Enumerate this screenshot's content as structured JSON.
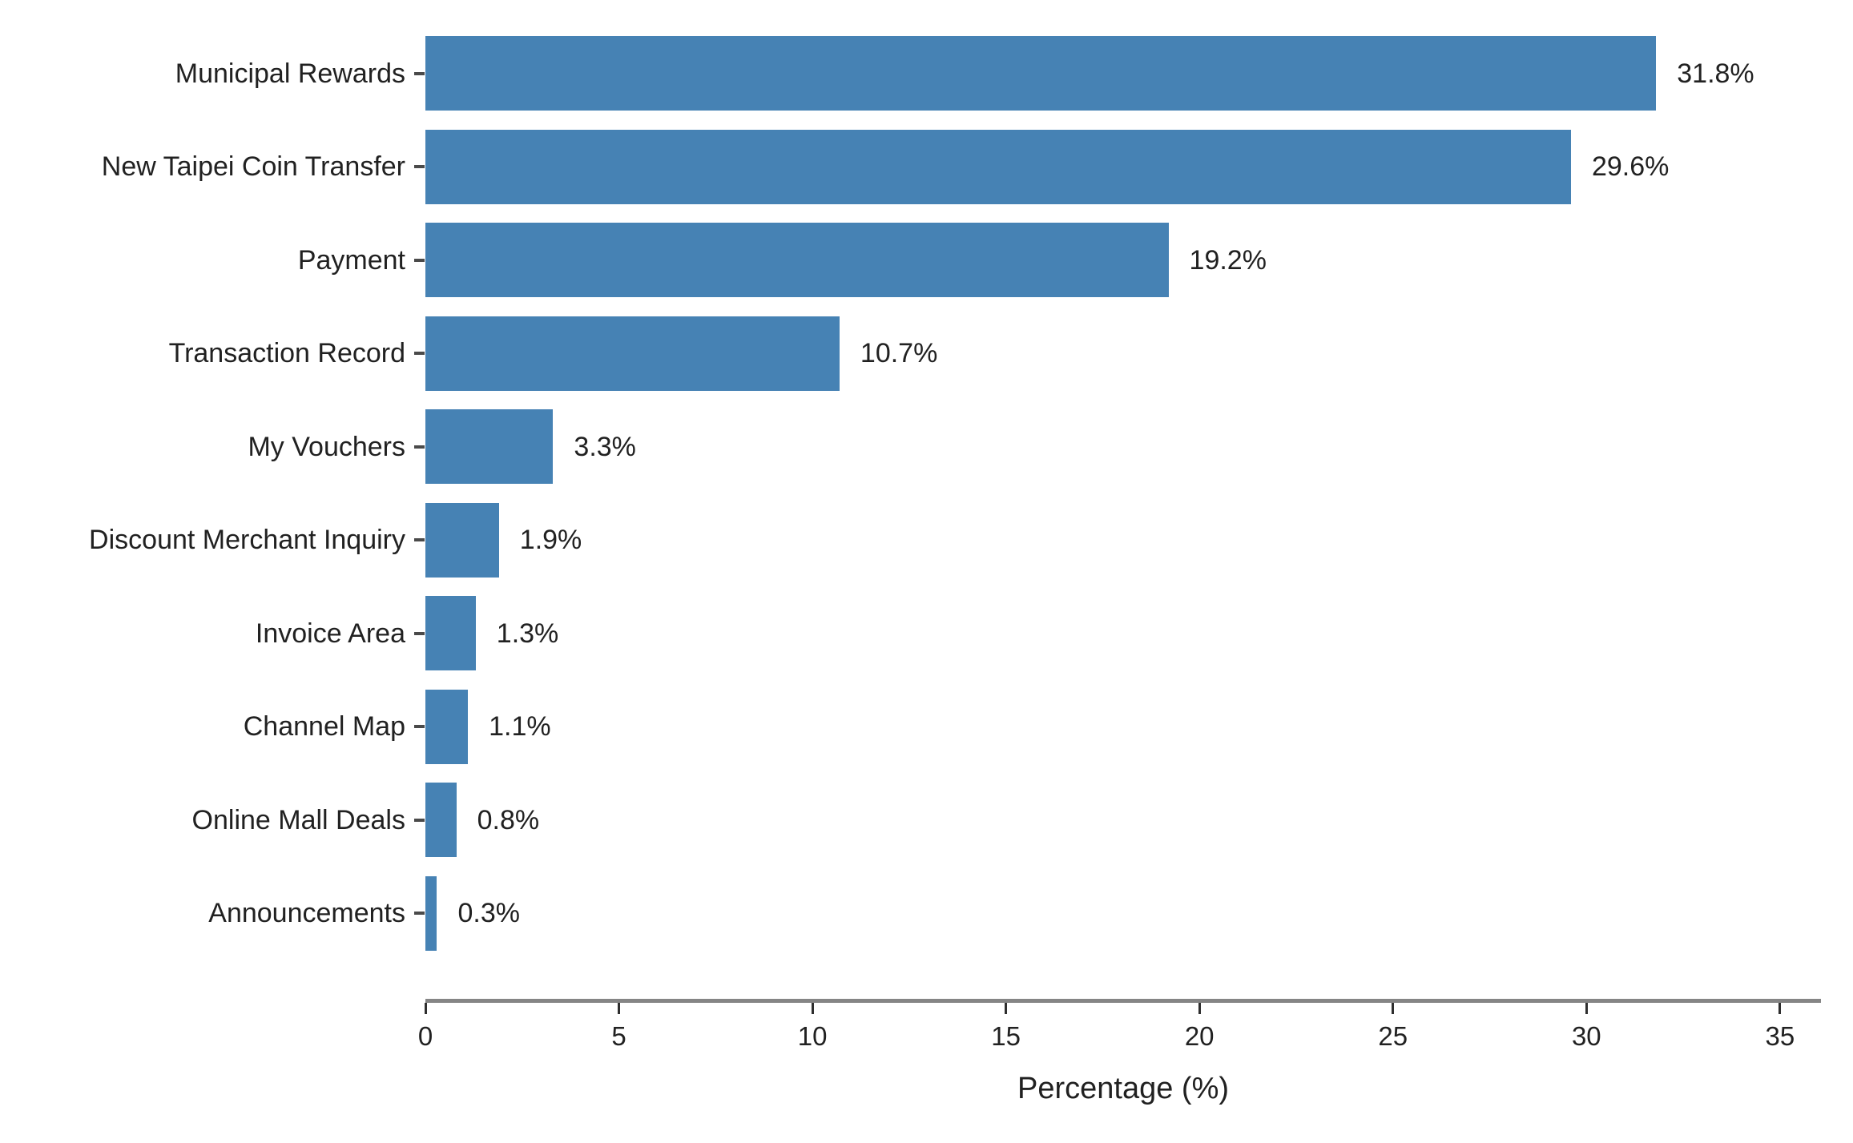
{
  "chart_data": {
    "type": "bar",
    "orientation": "horizontal",
    "title": "",
    "xlabel": "Percentage (%)",
    "categories": [
      "Municipal Rewards",
      "New Taipei Coin Transfer",
      "Payment",
      "Transaction Record",
      "My Vouchers",
      "Discount Merchant Inquiry",
      "Invoice Area",
      "Channel Map",
      "Online Mall Deals",
      "Announcements"
    ],
    "values": [
      31.8,
      29.6,
      19.2,
      10.7,
      3.3,
      1.9,
      1.3,
      1.1,
      0.8,
      0.3
    ],
    "value_labels": [
      "31.8%",
      "29.6%",
      "19.2%",
      "10.7%",
      "3.3%",
      "1.9%",
      "1.3%",
      "1.1%",
      "0.8%",
      "0.3%"
    ],
    "x_ticks": [
      0,
      5,
      10,
      15,
      20,
      25,
      30,
      35
    ],
    "x_tick_labels": [
      "0",
      "5",
      "10",
      "15",
      "20",
      "25",
      "30",
      "35"
    ],
    "xlim": [
      0,
      36.1
    ],
    "grid": false,
    "legend": false,
    "colors": {
      "bar": "#4682B4",
      "axis_line": "#858585",
      "tick_mark": "#2e2e2e",
      "text": "#212121"
    }
  }
}
